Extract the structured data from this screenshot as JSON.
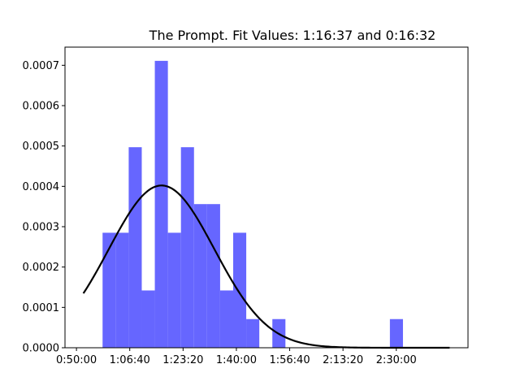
{
  "chart_data": {
    "type": "bar",
    "title": "The Prompt. Fit Values: 1:16:37 and 0:16:32",
    "xlabel": "",
    "ylabel": "",
    "x_tick_labels": [
      "0:50:00",
      "1:06:40",
      "1:23:20",
      "1:40:00",
      "1:56:40",
      "2:13:20",
      "2:30:00"
    ],
    "x_ticks_seconds": [
      3000,
      4000,
      5000,
      6000,
      7000,
      8000,
      9000
    ],
    "y_tick_labels": [
      "0.0000",
      "0.0001",
      "0.0002",
      "0.0003",
      "0.0004",
      "0.0005",
      "0.0006",
      "0.0007"
    ],
    "y_ticks": [
      0,
      0.0001,
      0.0002,
      0.0003,
      0.0004,
      0.0005,
      0.0006,
      0.0007
    ],
    "xlim_seconds": [
      2785,
      10345
    ],
    "ylim": [
      0,
      0.000745
    ],
    "bar_color": "#6666ff",
    "curve_color": "#000000",
    "bin_width_seconds": 245,
    "histogram": {
      "bin_starts_seconds": [
        3490,
        3735,
        3980,
        4225,
        4470,
        4715,
        4960,
        5205,
        5450,
        5695,
        5940,
        6185,
        6430,
        6675,
        6920,
        7165,
        7410,
        7655,
        7900,
        8145,
        8390,
        8635,
        8880
      ],
      "density": [
        0.000285,
        0.000285,
        0.000497,
        0.000142,
        0.000711,
        0.000285,
        0.000497,
        0.000356,
        0.000356,
        0.000142,
        0.000285,
        7.1e-05,
        0,
        7.1e-05,
        0,
        0,
        0,
        0,
        0,
        0,
        0,
        0,
        7.1e-05
      ]
    },
    "fit": {
      "type": "normal",
      "mean_seconds": 4597,
      "std_seconds": 992,
      "x_range_seconds": [
        3130,
        10000
      ]
    }
  }
}
